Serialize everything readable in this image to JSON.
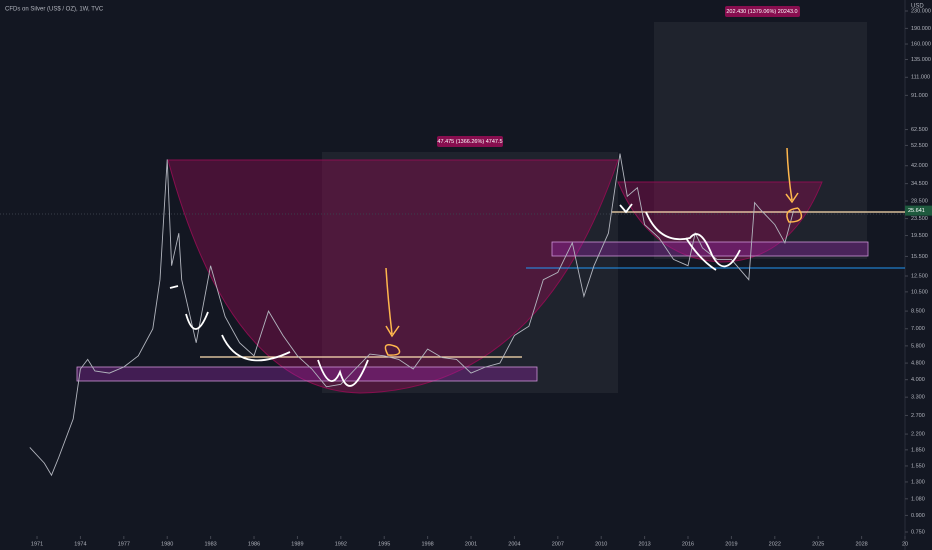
{
  "chart_data": {
    "type": "line",
    "title": "CFDs on Silver (US$ / OZ), 1W, TVC",
    "currency": "USD",
    "log_scale": true,
    "color": "#b2b5be",
    "x": [
      1970.5,
      1971.5,
      1972,
      1972.5,
      1973.5,
      1974,
      1974.5,
      1975,
      1976,
      1977,
      1978,
      1979,
      1979.5,
      1980,
      1980.3,
      1980.8,
      1981,
      1982,
      1983,
      1984,
      1985,
      1986,
      1987,
      1988,
      1989,
      1990,
      1991,
      1992,
      1993,
      1994,
      1995,
      1996,
      1997,
      1998,
      1999,
      2000,
      2001,
      2002,
      2003,
      2004,
      2005,
      2006,
      2007,
      2008,
      2008.8,
      2009.5,
      2010.5,
      2011.3,
      2011.8,
      2012.5,
      2013,
      2014,
      2015,
      2016,
      2016.5,
      2017,
      2018,
      2019,
      2020.2,
      2020.6,
      2021,
      2022,
      2022.7,
      2023.3
    ],
    "values": [
      1.9,
      1.6,
      1.4,
      1.7,
      2.6,
      4.5,
      5.0,
      4.4,
      4.3,
      4.6,
      5.2,
      7,
      12,
      45,
      14,
      20,
      12,
      6,
      14,
      8,
      6,
      5.2,
      8.5,
      6.5,
      5.2,
      4.5,
      3.7,
      3.8,
      4.5,
      5.3,
      5.2,
      5.0,
      4.5,
      5.6,
      5.1,
      5.0,
      4.3,
      4.6,
      4.8,
      6.5,
      7.2,
      12,
      13,
      18,
      10,
      14,
      20,
      48,
      30,
      33,
      22,
      19,
      15,
      14,
      20,
      17,
      15,
      15,
      12,
      28,
      26,
      22,
      18,
      25.641
    ],
    "last_price": 25.641,
    "annotations": [
      "47.475 (1366.26%) 4747.5",
      "202.430 (1379.06%) 20243.0"
    ],
    "xlim": [
      1968.44,
      2031.0
    ],
    "ylim": [
      0.75,
      230
    ],
    "xticks": [
      1971,
      1974,
      1977,
      1980,
      1983,
      1986,
      1989,
      1992,
      1995,
      1998,
      2001,
      2004,
      2007,
      2010,
      2013,
      2016,
      2019,
      2022,
      2025,
      2028,
      {
        "value": 2031,
        "label": "20"
      }
    ],
    "yticks": [
      {
        "value": 0.75,
        "label": "0.750"
      },
      {
        "value": 0.9,
        "label": "0.900"
      },
      {
        "value": 1.08,
        "label": "1.080"
      },
      {
        "value": 1.3,
        "label": "1.300"
      },
      {
        "value": 1.55,
        "label": "1.550"
      },
      {
        "value": 1.85,
        "label": "1.850"
      },
      {
        "value": 2.2,
        "label": "2.200"
      },
      {
        "value": 2.7,
        "label": "2.700"
      },
      {
        "value": 3.3,
        "label": "3.300"
      },
      {
        "value": 4,
        "label": "4.000"
      },
      {
        "value": 4.8,
        "label": "4.800"
      },
      {
        "value": 5.8,
        "label": "5.800"
      },
      {
        "value": 7,
        "label": "7.000"
      },
      {
        "value": 8.5,
        "label": "8.500"
      },
      {
        "value": 10.5,
        "label": "10.500"
      },
      {
        "value": 12.5,
        "label": "12.500"
      },
      {
        "value": 15.5,
        "label": "15.500"
      },
      {
        "value": 19.5,
        "label": "19.500"
      },
      {
        "value": 23.5,
        "label": "23.500"
      },
      {
        "value": 28.5,
        "label": "28.500"
      },
      {
        "value": 34.5,
        "label": "34.500"
      },
      {
        "value": 42,
        "label": "42.000"
      },
      {
        "value": 52.5,
        "label": "52.500"
      },
      {
        "value": 62.5,
        "label": "62.500"
      },
      {
        "value": 91,
        "label": "91.000"
      },
      {
        "value": 111,
        "label": "111.000"
      },
      {
        "value": 135,
        "label": "135.000"
      },
      {
        "value": 160,
        "label": "160.000"
      },
      {
        "value": 190,
        "label": "190.000"
      },
      {
        "value": 230,
        "label": "230.000"
      }
    ]
  }
}
